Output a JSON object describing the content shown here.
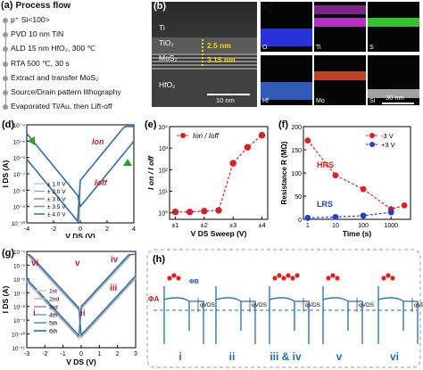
{
  "panels": {
    "a": "(a)",
    "b": "(b)",
    "c": "(c)",
    "d": "(d)",
    "e": "(e)",
    "f": "(f)",
    "g": "(g)",
    "h": "(h)"
  },
  "process_flow": {
    "title": "Process flow",
    "steps": [
      "p⁺ Si<100>",
      "PVD 10 nm TiN",
      "ALD 15 nm HfO₂, 300 ℃",
      "RTA 500 ℃, 30 s",
      "Extract and transfer MoS₂",
      "Source/Drain pattern lithography",
      "Evaporated Ti/Au,  then Lift-off"
    ]
  },
  "tem": {
    "layers": [
      "Ti",
      "TiO₂",
      "MoS₂",
      "HfO₂"
    ],
    "dim1": "2.5 nm",
    "dim2": "3.15 nm",
    "scale": "10 nm"
  },
  "eds": {
    "maps": [
      {
        "label": "O",
        "color": "#2f3cff"
      },
      {
        "label": "Ti",
        "color": "#d23be0"
      },
      {
        "label": "S",
        "color": "#3fe03a"
      },
      {
        "label": "Hf",
        "color": "#3b6ad8"
      },
      {
        "label": "Mo",
        "color": "#e0502a"
      },
      {
        "label": "Si",
        "color": "#bdbdbd"
      }
    ],
    "scale": "30 nm"
  },
  "chart_data": [
    {
      "panel": "d",
      "type": "line",
      "xlabel": "V_DS (V)",
      "ylabel": "I_DS (A)",
      "xlim": [
        -4,
        4
      ],
      "ylim": [
        1e-10,
        0.0001
      ],
      "yscale": "log",
      "xticks": [
        "-4",
        "-2",
        "0",
        "2",
        "4"
      ],
      "yticks": [
        "10⁻⁴",
        "10⁻⁵",
        "10⁻⁶",
        "10⁻⁷",
        "10⁻⁸",
        "10⁻⁹",
        "10⁻¹⁰"
      ],
      "legend": [
        "± 1.0 V",
        "± 2.0 V",
        "± 3.0 V",
        "± 3.5 V",
        "± 4.0 V"
      ],
      "annotations": [
        "I_on",
        "I_off"
      ],
      "series": [
        {
          "name": "± 1.0 V",
          "vmax": 1.0
        },
        {
          "name": "± 2.0 V",
          "vmax": 2.0
        },
        {
          "name": "± 3.0 V",
          "vmax": 3.0
        },
        {
          "name": "± 3.5 V",
          "vmax": 3.5
        },
        {
          "name": "± 4.0 V",
          "vmax": 4.0
        }
      ]
    },
    {
      "panel": "e",
      "type": "line",
      "title": "I_on / I_off",
      "xlabel": "V_DS Sweep (V)",
      "ylabel": "I_on / I_off",
      "categories": [
        "±1",
        "±2",
        "±3",
        "±4"
      ],
      "x": [
        1,
        1.5,
        2,
        2.5,
        3,
        3.5,
        4
      ],
      "y": [
        1.1,
        1.1,
        1.2,
        1.3,
        200,
        1100,
        4000
      ],
      "yscale": "log",
      "ylim": [
        0.5,
        10000
      ],
      "yticks": [
        "10⁰",
        "10¹",
        "10²",
        "10³",
        "10⁴"
      ]
    },
    {
      "panel": "f",
      "type": "line",
      "xlabel": "Time (s)",
      "ylabel": "Resistance R (MΩ)",
      "xscale": "log",
      "xlim": [
        0.7,
        5000
      ],
      "ylim": [
        0,
        200
      ],
      "yticks": [
        "0",
        "50",
        "100",
        "150",
        "200"
      ],
      "xticks": [
        "1",
        "10",
        "100",
        "1000"
      ],
      "annotations": [
        "HRS",
        "LRS"
      ],
      "series": [
        {
          "name": "-3 V",
          "color": "#e02020",
          "x": [
            1,
            10,
            100,
            1000,
            3000
          ],
          "y": [
            170,
            95,
            65,
            22,
            30
          ]
        },
        {
          "name": "+3 V",
          "color": "#2040d0",
          "x": [
            1,
            10,
            100,
            1000
          ],
          "y": [
            3,
            5,
            8,
            15
          ]
        }
      ]
    },
    {
      "panel": "g",
      "type": "line",
      "xlabel": "V_DS (V)",
      "ylabel": "I_DS (A)",
      "xlim": [
        -3,
        3
      ],
      "ylim": [
        1e-11,
        0.0001
      ],
      "yscale": "log",
      "xticks": [
        "-3",
        "-2",
        "-1",
        "0",
        "1",
        "2",
        "3"
      ],
      "yticks": [
        "10⁻⁴",
        "10⁻⁵",
        "10⁻⁶",
        "10⁻⁷",
        "10⁻⁸",
        "10⁻⁹",
        "10⁻¹⁰",
        "10⁻¹¹"
      ],
      "legend": [
        "1st",
        "2nd",
        "3rd",
        "4th",
        "5th",
        "6th"
      ],
      "annotations": [
        "vi",
        "v",
        "iv",
        "iii",
        "ii",
        "i"
      ]
    }
  ],
  "band_diagram": {
    "labels": [
      "i",
      "ii",
      "iii & iv",
      "v",
      "vi"
    ],
    "phiA": "Φ_A",
    "phiB": "Φ_B",
    "qVds": "qV_DS"
  }
}
